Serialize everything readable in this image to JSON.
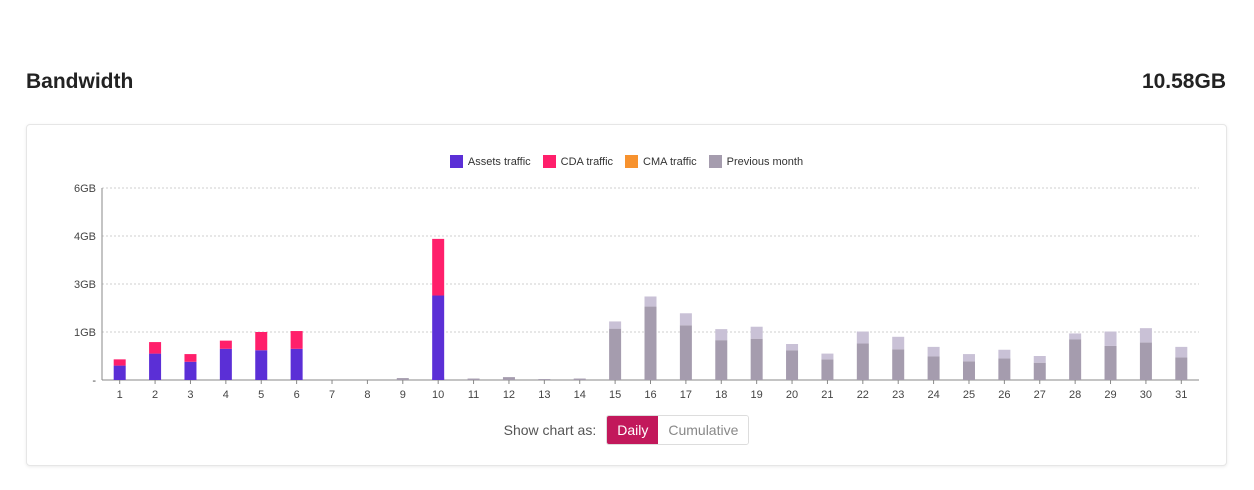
{
  "header": {
    "title": "Bandwidth",
    "total": "10.58GB"
  },
  "controls": {
    "label": "Show chart as:",
    "options": [
      "Daily",
      "Cumulative"
    ],
    "selected": "Daily"
  },
  "colors": {
    "assets": "#5b2fd6",
    "cda": "#ff1f6b",
    "cma": "#f7922e",
    "previous": "#a59cae",
    "previous_top": "#c9c1d6",
    "accent": "#c2185b"
  },
  "chart_data": {
    "type": "bar",
    "stacked": true,
    "legend_position": "top-center",
    "grid": true,
    "legend": [
      "Assets traffic",
      "CDA traffic",
      "CMA traffic",
      "Previous month"
    ],
    "categories": [
      "1",
      "2",
      "3",
      "4",
      "5",
      "6",
      "7",
      "8",
      "9",
      "10",
      "11",
      "12",
      "13",
      "14",
      "15",
      "16",
      "17",
      "18",
      "19",
      "20",
      "21",
      "22",
      "23",
      "24",
      "25",
      "26",
      "27",
      "28",
      "29",
      "30",
      "31"
    ],
    "y_ticks": [
      {
        "label": "6GB",
        "level": 4
      },
      {
        "label": "4GB",
        "level": 3
      },
      {
        "label": "3GB",
        "level": 2
      },
      {
        "label": "1GB",
        "level": 1
      },
      {
        "label": "-",
        "level": 0
      }
    ],
    "ylim": [
      0,
      4
    ],
    "series": [
      {
        "name": "Assets traffic",
        "values": [
          0.3,
          0.55,
          0.38,
          0.65,
          0.62,
          0.65,
          0,
          0,
          0,
          1.76,
          0,
          0,
          0,
          0,
          0,
          0,
          0,
          0,
          0,
          0,
          0,
          0,
          0,
          0,
          0,
          0,
          0,
          0,
          0,
          0,
          0
        ]
      },
      {
        "name": "CDA traffic",
        "values": [
          0.13,
          0.24,
          0.16,
          0.17,
          0.38,
          0.37,
          0,
          0,
          0,
          1.18,
          0,
          0,
          0,
          0,
          0,
          0,
          0,
          0,
          0,
          0,
          0,
          0,
          0,
          0,
          0,
          0,
          0,
          0,
          0,
          0,
          0
        ]
      },
      {
        "name": "CMA traffic",
        "values": [
          0,
          0,
          0,
          0,
          0,
          0,
          0,
          0,
          0,
          0,
          0,
          0,
          0,
          0,
          0,
          0,
          0,
          0,
          0,
          0,
          0,
          0,
          0,
          0,
          0,
          0,
          0,
          0,
          0,
          0,
          0
        ]
      },
      {
        "name": "Previous month",
        "values": [
          0,
          0,
          0,
          0,
          0,
          0,
          0,
          0,
          0.04,
          0.05,
          0.03,
          0.06,
          0.02,
          0.03,
          1.07,
          1.53,
          1.14,
          0.83,
          0.86,
          0.62,
          0.43,
          0.76,
          0.64,
          0.49,
          0.39,
          0.45,
          0.36,
          0.85,
          0.71,
          0.78,
          0.47
        ]
      },
      {
        "name": "Previous month (upper)",
        "values": [
          0,
          0,
          0,
          0,
          0,
          0,
          0,
          0,
          0,
          0,
          0,
          0,
          0,
          0,
          0.15,
          0.21,
          0.25,
          0.23,
          0.25,
          0.13,
          0.12,
          0.25,
          0.26,
          0.2,
          0.15,
          0.18,
          0.14,
          0.12,
          0.3,
          0.3,
          0.22
        ]
      }
    ]
  }
}
